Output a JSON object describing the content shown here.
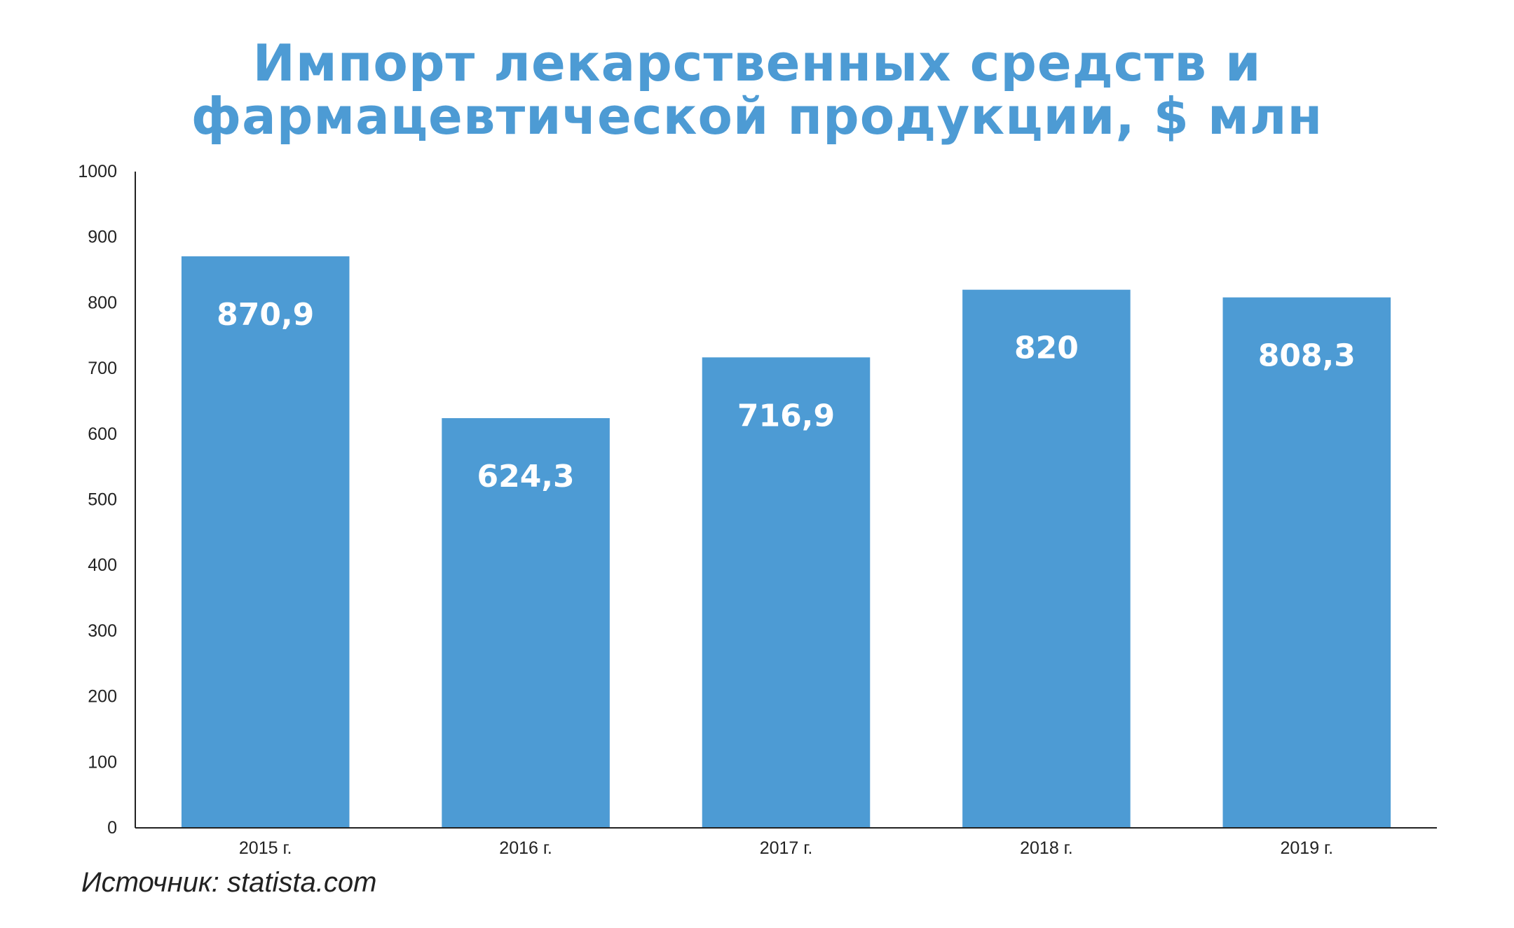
{
  "chart_data": {
    "type": "bar",
    "title": [
      "Импорт лекарственных средств и",
      "фармацевтической продукции, $ млн"
    ],
    "categories": [
      "2015 г.",
      "2016 г.",
      "2017 г.",
      "2018 г.",
      "2019 г."
    ],
    "values": [
      870.9,
      624.3,
      716.9,
      820,
      808.3
    ],
    "data_labels": [
      "870,9",
      "624,3",
      "716,9",
      "820",
      "808,3"
    ],
    "ylim": [
      0,
      1000
    ],
    "yticks": [
      0,
      100,
      200,
      300,
      400,
      500,
      600,
      700,
      800,
      900,
      1000
    ],
    "grid": false,
    "bar_color": "#4d9bd4",
    "xlabel": "",
    "ylabel": ""
  },
  "source": "Источник: statista.com"
}
